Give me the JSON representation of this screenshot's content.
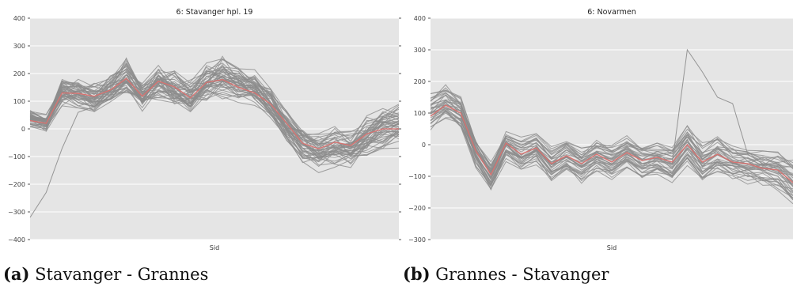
{
  "chart_data": [
    {
      "type": "line",
      "title": "6: Stavanger hpl. 19",
      "xlabel": "Sid",
      "ylabel": "",
      "ylim": [
        -400,
        400
      ],
      "yticks": [
        "400",
        "300",
        "200",
        "100",
        "0",
        "−100",
        "−200",
        "−300",
        "−400"
      ],
      "ytick_values": [
        400,
        300,
        200,
        100,
        0,
        -100,
        -200,
        -300,
        -400
      ],
      "grid": true,
      "background": "#e5e5e5",
      "grey_color": "#8c8c8c",
      "highlight_color": "#d9716f",
      "highlight": [
        30,
        20,
        130,
        128,
        118,
        140,
        182,
        118,
        172,
        152,
        112,
        168,
        178,
        150,
        130,
        90,
        20,
        -52,
        -72,
        -48,
        -60,
        -18,
        0,
        0
      ],
      "base_series": [
        [
          60,
          40,
          155,
          160,
          140,
          170,
          225,
          140,
          200,
          180,
          150,
          200,
          220,
          200,
          180,
          130,
          40,
          -20,
          -40,
          -20,
          -30,
          20,
          50,
          70
        ],
        [
          20,
          5,
          110,
          100,
          85,
          110,
          160,
          95,
          140,
          110,
          75,
          130,
          150,
          130,
          105,
          55,
          -30,
          -100,
          -130,
          -115,
          -120,
          -80,
          -50,
          -40
        ]
      ],
      "spread": [
        40,
        35,
        60,
        65,
        65,
        70,
        75,
        65,
        80,
        75,
        70,
        85,
        90,
        80,
        70,
        65,
        60,
        55,
        60,
        65,
        65,
        70,
        70,
        90
      ],
      "n_grey": 44,
      "outlier": [
        -320,
        -230,
        -70,
        60,
        80,
        120,
        170,
        95,
        160,
        130,
        90,
        150,
        160,
        140,
        120,
        80,
        0,
        -60,
        -80,
        -60,
        -70,
        -30,
        20,
        40
      ],
      "series_count_note": "",
      "caption_tag": "(a)",
      "caption_text": " Stavanger - Grannes"
    },
    {
      "type": "line",
      "title": "6: Novarmen",
      "xlabel": "Sid",
      "ylabel": "",
      "ylim": [
        -300,
        400
      ],
      "yticks": [
        "400",
        "300",
        "200",
        "100",
        "0",
        "−100",
        "−200",
        "−300"
      ],
      "ytick_values": [
        400,
        300,
        200,
        100,
        0,
        -100,
        -200,
        -300
      ],
      "grid": true,
      "background": "#e5e5e5",
      "grey_color": "#8c8c8c",
      "highlight_color": "#d9716f",
      "highlight": [
        90,
        125,
        100,
        -20,
        -95,
        5,
        -30,
        -10,
        -60,
        -35,
        -60,
        -30,
        -55,
        -25,
        -50,
        -40,
        -55,
        0,
        -55,
        -30,
        -55,
        -60,
        -75,
        -80,
        -120
      ],
      "base_series": [
        [
          150,
          180,
          140,
          10,
          -60,
          40,
          10,
          30,
          -20,
          10,
          -20,
          10,
          -10,
          20,
          -10,
          0,
          -10,
          50,
          -10,
          20,
          -10,
          -20,
          -30,
          -30,
          -60
        ],
        [
          60,
          90,
          60,
          -60,
          -140,
          -40,
          -70,
          -50,
          -110,
          -80,
          -110,
          -80,
          -100,
          -70,
          -100,
          -90,
          -110,
          -50,
          -110,
          -80,
          -100,
          -110,
          -120,
          -130,
          -180
        ]
      ],
      "spread": [
        40,
        35,
        35,
        30,
        30,
        30,
        30,
        30,
        30,
        30,
        30,
        30,
        30,
        30,
        30,
        30,
        30,
        40,
        35,
        35,
        35,
        35,
        40,
        40,
        50
      ],
      "n_grey": 34,
      "outlier": [
        100,
        120,
        90,
        -30,
        -110,
        0,
        -40,
        -20,
        -70,
        -40,
        -70,
        -40,
        -60,
        -30,
        -60,
        -50,
        -60,
        300,
        230,
        150,
        130,
        -30,
        -60,
        -60,
        -100
      ],
      "caption_tag": "(b)",
      "caption_text": " Grannes - Stavanger"
    }
  ]
}
